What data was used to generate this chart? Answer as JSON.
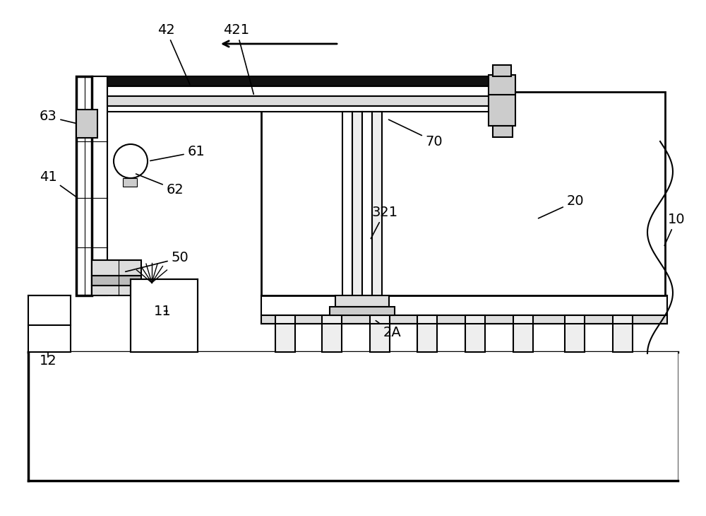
{
  "bg_color": "#ffffff",
  "lc": "#000000",
  "lw": 1.5,
  "tlw": 2.5,
  "fs": 14,
  "figw": 10.0,
  "figh": 7.3
}
